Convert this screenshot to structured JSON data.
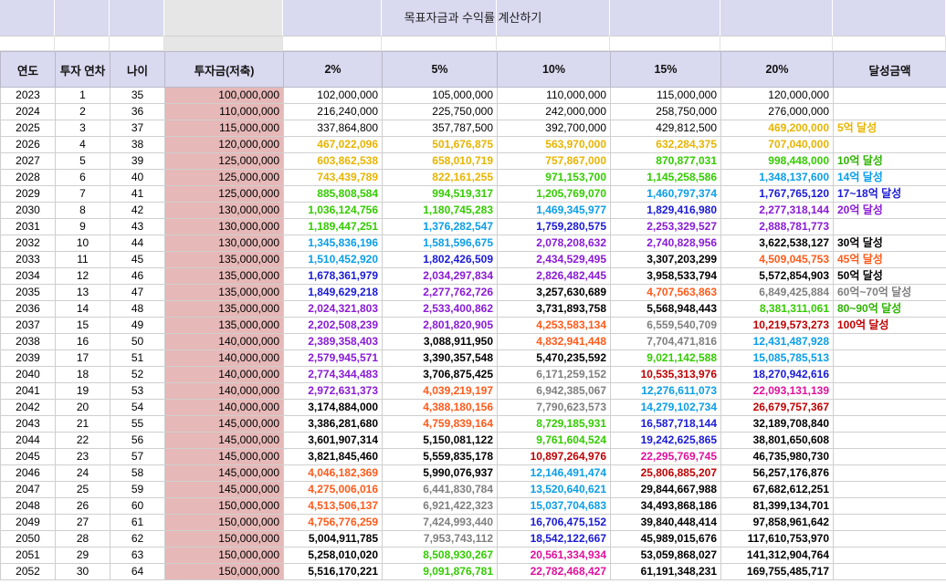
{
  "title": "목표자금과 수익률 계산하기",
  "headers": [
    "연도",
    "투자 연차",
    "나이",
    "투자금(저축)",
    "2%",
    "5%",
    "10%",
    "15%",
    "20%",
    "달성금액"
  ],
  "colors": {
    "header_bg": "#d9d9f0",
    "investment_bg": "#e6b8b7",
    "yellow": "#e8b400",
    "green": "#33cc00",
    "blue": "#0a9ee8",
    "navy": "#1a1ad6",
    "purple": "#8a1ad6",
    "orange": "#ff5a1a",
    "gray": "#7f7f7f",
    "red": "#c00000",
    "magenta": "#e0109c"
  },
  "rows": [
    {
      "year": "2023",
      "n": "1",
      "age": "35",
      "inv": "100,000,000",
      "v": [
        "102,000,000",
        "105,000,000",
        "110,000,000",
        "115,000,000",
        "120,000,000"
      ],
      "c": [
        "plain",
        "plain",
        "plain",
        "plain",
        "plain"
      ],
      "a": "",
      "ac": "plain"
    },
    {
      "year": "2024",
      "n": "2",
      "age": "36",
      "inv": "110,000,000",
      "v": [
        "216,240,000",
        "225,750,000",
        "242,000,000",
        "258,750,000",
        "276,000,000"
      ],
      "c": [
        "plain",
        "plain",
        "plain",
        "plain",
        "plain"
      ],
      "a": "",
      "ac": "plain"
    },
    {
      "year": "2025",
      "n": "3",
      "age": "37",
      "inv": "115,000,000",
      "v": [
        "337,864,800",
        "357,787,500",
        "392,700,000",
        "429,812,500",
        "469,200,000"
      ],
      "c": [
        "plain",
        "plain",
        "plain",
        "plain",
        "yellow"
      ],
      "a": "5억 달성",
      "ac": "yellow"
    },
    {
      "year": "2026",
      "n": "4",
      "age": "38",
      "inv": "120,000,000",
      "v": [
        "467,022,096",
        "501,676,875",
        "563,970,000",
        "632,284,375",
        "707,040,000"
      ],
      "c": [
        "yellow",
        "yellow",
        "yellow",
        "yellow",
        "yellow"
      ],
      "a": "",
      "ac": "plain"
    },
    {
      "year": "2027",
      "n": "5",
      "age": "39",
      "inv": "125,000,000",
      "v": [
        "603,862,538",
        "658,010,719",
        "757,867,000",
        "870,877,031",
        "998,448,000"
      ],
      "c": [
        "yellow",
        "yellow",
        "yellow",
        "green",
        "green"
      ],
      "a": "10억 달성",
      "ac": "ach-green"
    },
    {
      "year": "2028",
      "n": "6",
      "age": "40",
      "inv": "125,000,000",
      "v": [
        "743,439,789",
        "822,161,255",
        "971,153,700",
        "1,145,258,586",
        "1,348,137,600"
      ],
      "c": [
        "yellow",
        "yellow",
        "green",
        "green",
        "blue"
      ],
      "a": "14억 달성",
      "ac": "blue"
    },
    {
      "year": "2029",
      "n": "7",
      "age": "41",
      "inv": "125,000,000",
      "v": [
        "885,808,584",
        "994,519,317",
        "1,205,769,070",
        "1,460,797,374",
        "1,767,765,120"
      ],
      "c": [
        "green",
        "green",
        "green",
        "blue",
        "navy"
      ],
      "a": "17~18억 달성",
      "ac": "navy"
    },
    {
      "year": "2030",
      "n": "8",
      "age": "42",
      "inv": "130,000,000",
      "v": [
        "1,036,124,756",
        "1,180,745,283",
        "1,469,345,977",
        "1,829,416,980",
        "2,277,318,144"
      ],
      "c": [
        "green",
        "green",
        "blue",
        "navy",
        "purple"
      ],
      "a": "20억 달성",
      "ac": "purple"
    },
    {
      "year": "2031",
      "n": "9",
      "age": "43",
      "inv": "130,000,000",
      "v": [
        "1,189,447,251",
        "1,376,282,547",
        "1,759,280,575",
        "2,253,329,527",
        "2,888,781,773"
      ],
      "c": [
        "green",
        "blue",
        "navy",
        "purple",
        "purple"
      ],
      "a": "",
      "ac": "plain"
    },
    {
      "year": "2032",
      "n": "10",
      "age": "44",
      "inv": "130,000,000",
      "v": [
        "1,345,836,196",
        "1,581,596,675",
        "2,078,208,632",
        "2,740,828,956",
        "3,622,538,127"
      ],
      "c": [
        "blue",
        "blue",
        "purple",
        "purple",
        "black"
      ],
      "a": "30억 달성",
      "ac": "black"
    },
    {
      "year": "2033",
      "n": "11",
      "age": "45",
      "inv": "135,000,000",
      "v": [
        "1,510,452,920",
        "1,802,426,509",
        "2,434,529,495",
        "3,307,203,299",
        "4,509,045,753"
      ],
      "c": [
        "blue",
        "navy",
        "purple",
        "black",
        "orange"
      ],
      "a": "45억 달성",
      "ac": "orange"
    },
    {
      "year": "2034",
      "n": "12",
      "age": "46",
      "inv": "135,000,000",
      "v": [
        "1,678,361,979",
        "2,034,297,834",
        "2,826,482,445",
        "3,958,533,794",
        "5,572,854,903"
      ],
      "c": [
        "navy",
        "purple",
        "purple",
        "black",
        "black"
      ],
      "a": "50억 달성",
      "ac": "black"
    },
    {
      "year": "2035",
      "n": "13",
      "age": "47",
      "inv": "135,000,000",
      "v": [
        "1,849,629,218",
        "2,277,762,726",
        "3,257,630,689",
        "4,707,563,863",
        "6,849,425,884"
      ],
      "c": [
        "navy",
        "purple",
        "black",
        "orange",
        "gray"
      ],
      "a": "60억~70억 달성",
      "ac": "gray"
    },
    {
      "year": "2036",
      "n": "14",
      "age": "48",
      "inv": "135,000,000",
      "v": [
        "2,024,321,803",
        "2,533,400,862",
        "3,731,893,758",
        "5,568,948,443",
        "8,381,311,061"
      ],
      "c": [
        "purple",
        "purple",
        "black",
        "black",
        "green"
      ],
      "a": "80~90억 달성",
      "ac": "ach-green"
    },
    {
      "year": "2037",
      "n": "15",
      "age": "49",
      "inv": "135,000,000",
      "v": [
        "2,202,508,239",
        "2,801,820,905",
        "4,253,583,134",
        "6,559,540,709",
        "10,219,573,273"
      ],
      "c": [
        "purple",
        "purple",
        "orange",
        "gray",
        "red"
      ],
      "a": "100억 달성",
      "ac": "red"
    },
    {
      "year": "2038",
      "n": "16",
      "age": "50",
      "inv": "140,000,000",
      "v": [
        "2,389,358,403",
        "3,088,911,950",
        "4,832,941,448",
        "7,704,471,816",
        "12,431,487,928"
      ],
      "c": [
        "purple",
        "black",
        "orange",
        "gray",
        "blue"
      ],
      "a": "",
      "ac": "plain"
    },
    {
      "year": "2039",
      "n": "17",
      "age": "51",
      "inv": "140,000,000",
      "v": [
        "2,579,945,571",
        "3,390,357,548",
        "5,470,235,592",
        "9,021,142,588",
        "15,085,785,513"
      ],
      "c": [
        "purple",
        "black",
        "black",
        "green",
        "blue"
      ],
      "a": "",
      "ac": "plain"
    },
    {
      "year": "2040",
      "n": "18",
      "age": "52",
      "inv": "140,000,000",
      "v": [
        "2,774,344,483",
        "3,706,875,425",
        "6,171,259,152",
        "10,535,313,976",
        "18,270,942,616"
      ],
      "c": [
        "purple",
        "black",
        "gray",
        "red",
        "navy"
      ],
      "a": "",
      "ac": "plain"
    },
    {
      "year": "2041",
      "n": "19",
      "age": "53",
      "inv": "140,000,000",
      "v": [
        "2,972,631,373",
        "4,039,219,197",
        "6,942,385,067",
        "12,276,611,073",
        "22,093,131,139"
      ],
      "c": [
        "purple",
        "orange",
        "gray",
        "blue",
        "magenta"
      ],
      "a": "",
      "ac": "plain"
    },
    {
      "year": "2042",
      "n": "20",
      "age": "54",
      "inv": "140,000,000",
      "v": [
        "3,174,884,000",
        "4,388,180,156",
        "7,790,623,573",
        "14,279,102,734",
        "26,679,757,367"
      ],
      "c": [
        "black",
        "orange",
        "gray",
        "blue",
        "red"
      ],
      "a": "",
      "ac": "plain"
    },
    {
      "year": "2043",
      "n": "21",
      "age": "55",
      "inv": "145,000,000",
      "v": [
        "3,386,281,680",
        "4,759,839,164",
        "8,729,185,931",
        "16,587,718,144",
        "32,189,708,840"
      ],
      "c": [
        "black",
        "orange",
        "green",
        "navy",
        "black"
      ],
      "a": "",
      "ac": "plain"
    },
    {
      "year": "2044",
      "n": "22",
      "age": "56",
      "inv": "145,000,000",
      "v": [
        "3,601,907,314",
        "5,150,081,122",
        "9,761,604,524",
        "19,242,625,865",
        "38,801,650,608"
      ],
      "c": [
        "black",
        "black",
        "green",
        "navy",
        "black"
      ],
      "a": "",
      "ac": "plain"
    },
    {
      "year": "2045",
      "n": "23",
      "age": "57",
      "inv": "145,000,000",
      "v": [
        "3,821,845,460",
        "5,559,835,178",
        "10,897,264,976",
        "22,295,769,745",
        "46,735,980,730"
      ],
      "c": [
        "black",
        "black",
        "red",
        "magenta",
        "black"
      ],
      "a": "",
      "ac": "plain"
    },
    {
      "year": "2046",
      "n": "24",
      "age": "58",
      "inv": "145,000,000",
      "v": [
        "4,046,182,369",
        "5,990,076,937",
        "12,146,491,474",
        "25,806,885,207",
        "56,257,176,876"
      ],
      "c": [
        "orange",
        "black",
        "blue",
        "red",
        "black"
      ],
      "a": "",
      "ac": "plain"
    },
    {
      "year": "2047",
      "n": "25",
      "age": "59",
      "inv": "145,000,000",
      "v": [
        "4,275,006,016",
        "6,441,830,784",
        "13,520,640,621",
        "29,844,667,988",
        "67,682,612,251"
      ],
      "c": [
        "orange",
        "gray",
        "blue",
        "black",
        "black"
      ],
      "a": "",
      "ac": "plain"
    },
    {
      "year": "2048",
      "n": "26",
      "age": "60",
      "inv": "150,000,000",
      "v": [
        "4,513,506,137",
        "6,921,422,323",
        "15,037,704,683",
        "34,493,868,186",
        "81,399,134,701"
      ],
      "c": [
        "orange",
        "gray",
        "blue",
        "black",
        "black"
      ],
      "a": "",
      "ac": "plain"
    },
    {
      "year": "2049",
      "n": "27",
      "age": "61",
      "inv": "150,000,000",
      "v": [
        "4,756,776,259",
        "7,424,993,440",
        "16,706,475,152",
        "39,840,448,414",
        "97,858,961,642"
      ],
      "c": [
        "orange",
        "gray",
        "navy",
        "black",
        "black"
      ],
      "a": "",
      "ac": "plain"
    },
    {
      "year": "2050",
      "n": "28",
      "age": "62",
      "inv": "150,000,000",
      "v": [
        "5,004,911,785",
        "7,953,743,112",
        "18,542,122,667",
        "45,989,015,676",
        "117,610,753,970"
      ],
      "c": [
        "black",
        "gray",
        "navy",
        "black",
        "black"
      ],
      "a": "",
      "ac": "plain"
    },
    {
      "year": "2051",
      "n": "29",
      "age": "63",
      "inv": "150,000,000",
      "v": [
        "5,258,010,020",
        "8,508,930,267",
        "20,561,334,934",
        "53,059,868,027",
        "141,312,904,764"
      ],
      "c": [
        "black",
        "green",
        "magenta",
        "black",
        "black"
      ],
      "a": "",
      "ac": "plain"
    },
    {
      "year": "2052",
      "n": "30",
      "age": "64",
      "inv": "150,000,000",
      "v": [
        "5,516,170,221",
        "9,091,876,781",
        "22,782,468,427",
        "61,191,348,231",
        "169,755,485,717"
      ],
      "c": [
        "black",
        "green",
        "magenta",
        "black",
        "black"
      ],
      "a": "",
      "ac": "plain"
    }
  ]
}
